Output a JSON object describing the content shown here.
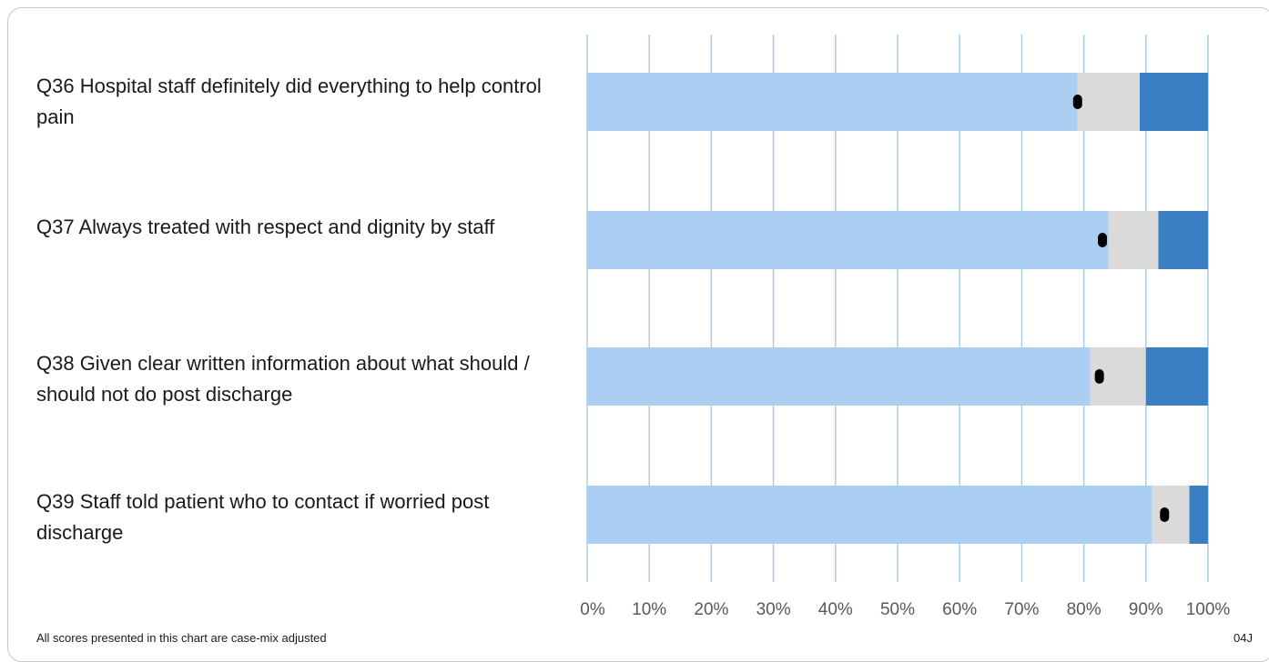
{
  "chart_data": {
    "type": "bar",
    "stacked": true,
    "orientation": "horizontal",
    "categories": [
      "Q36 Hospital staff definitely did everything to help control pain",
      "Q37 Always treated with respect and dignity by staff",
      "Q38 Given clear written information about what should / should not do post discharge",
      "Q39 Staff told patient who to contact if worried post discharge"
    ],
    "series": [
      {
        "values": [
          79,
          84,
          81,
          91
        ],
        "color": "#aacff2"
      },
      {
        "values": [
          10,
          8,
          9,
          6
        ],
        "color": "#dadada"
      },
      {
        "values": [
          11,
          8,
          10,
          3
        ],
        "color": "#3a7fc4"
      }
    ],
    "markers": [
      79,
      83,
      82.5,
      93
    ],
    "xlim": [
      0,
      100
    ],
    "xticks": [
      "0%",
      "10%",
      "20%",
      "30%",
      "40%",
      "50%",
      "60%",
      "70%",
      "80%",
      "90%",
      "100%"
    ],
    "grid": true
  },
  "labels": {
    "q36": "Q36 Hospital staff definitely did everything to help control pain",
    "q37": "Q37 Always treated with respect and dignity by staff",
    "q38": "Q38 Given clear written information about what should / should not do post discharge",
    "q39": "Q39 Staff told patient who to contact if worried post discharge"
  },
  "footer": {
    "note": "All scores presented in this chart are case-mix adjusted",
    "code": "04J"
  }
}
